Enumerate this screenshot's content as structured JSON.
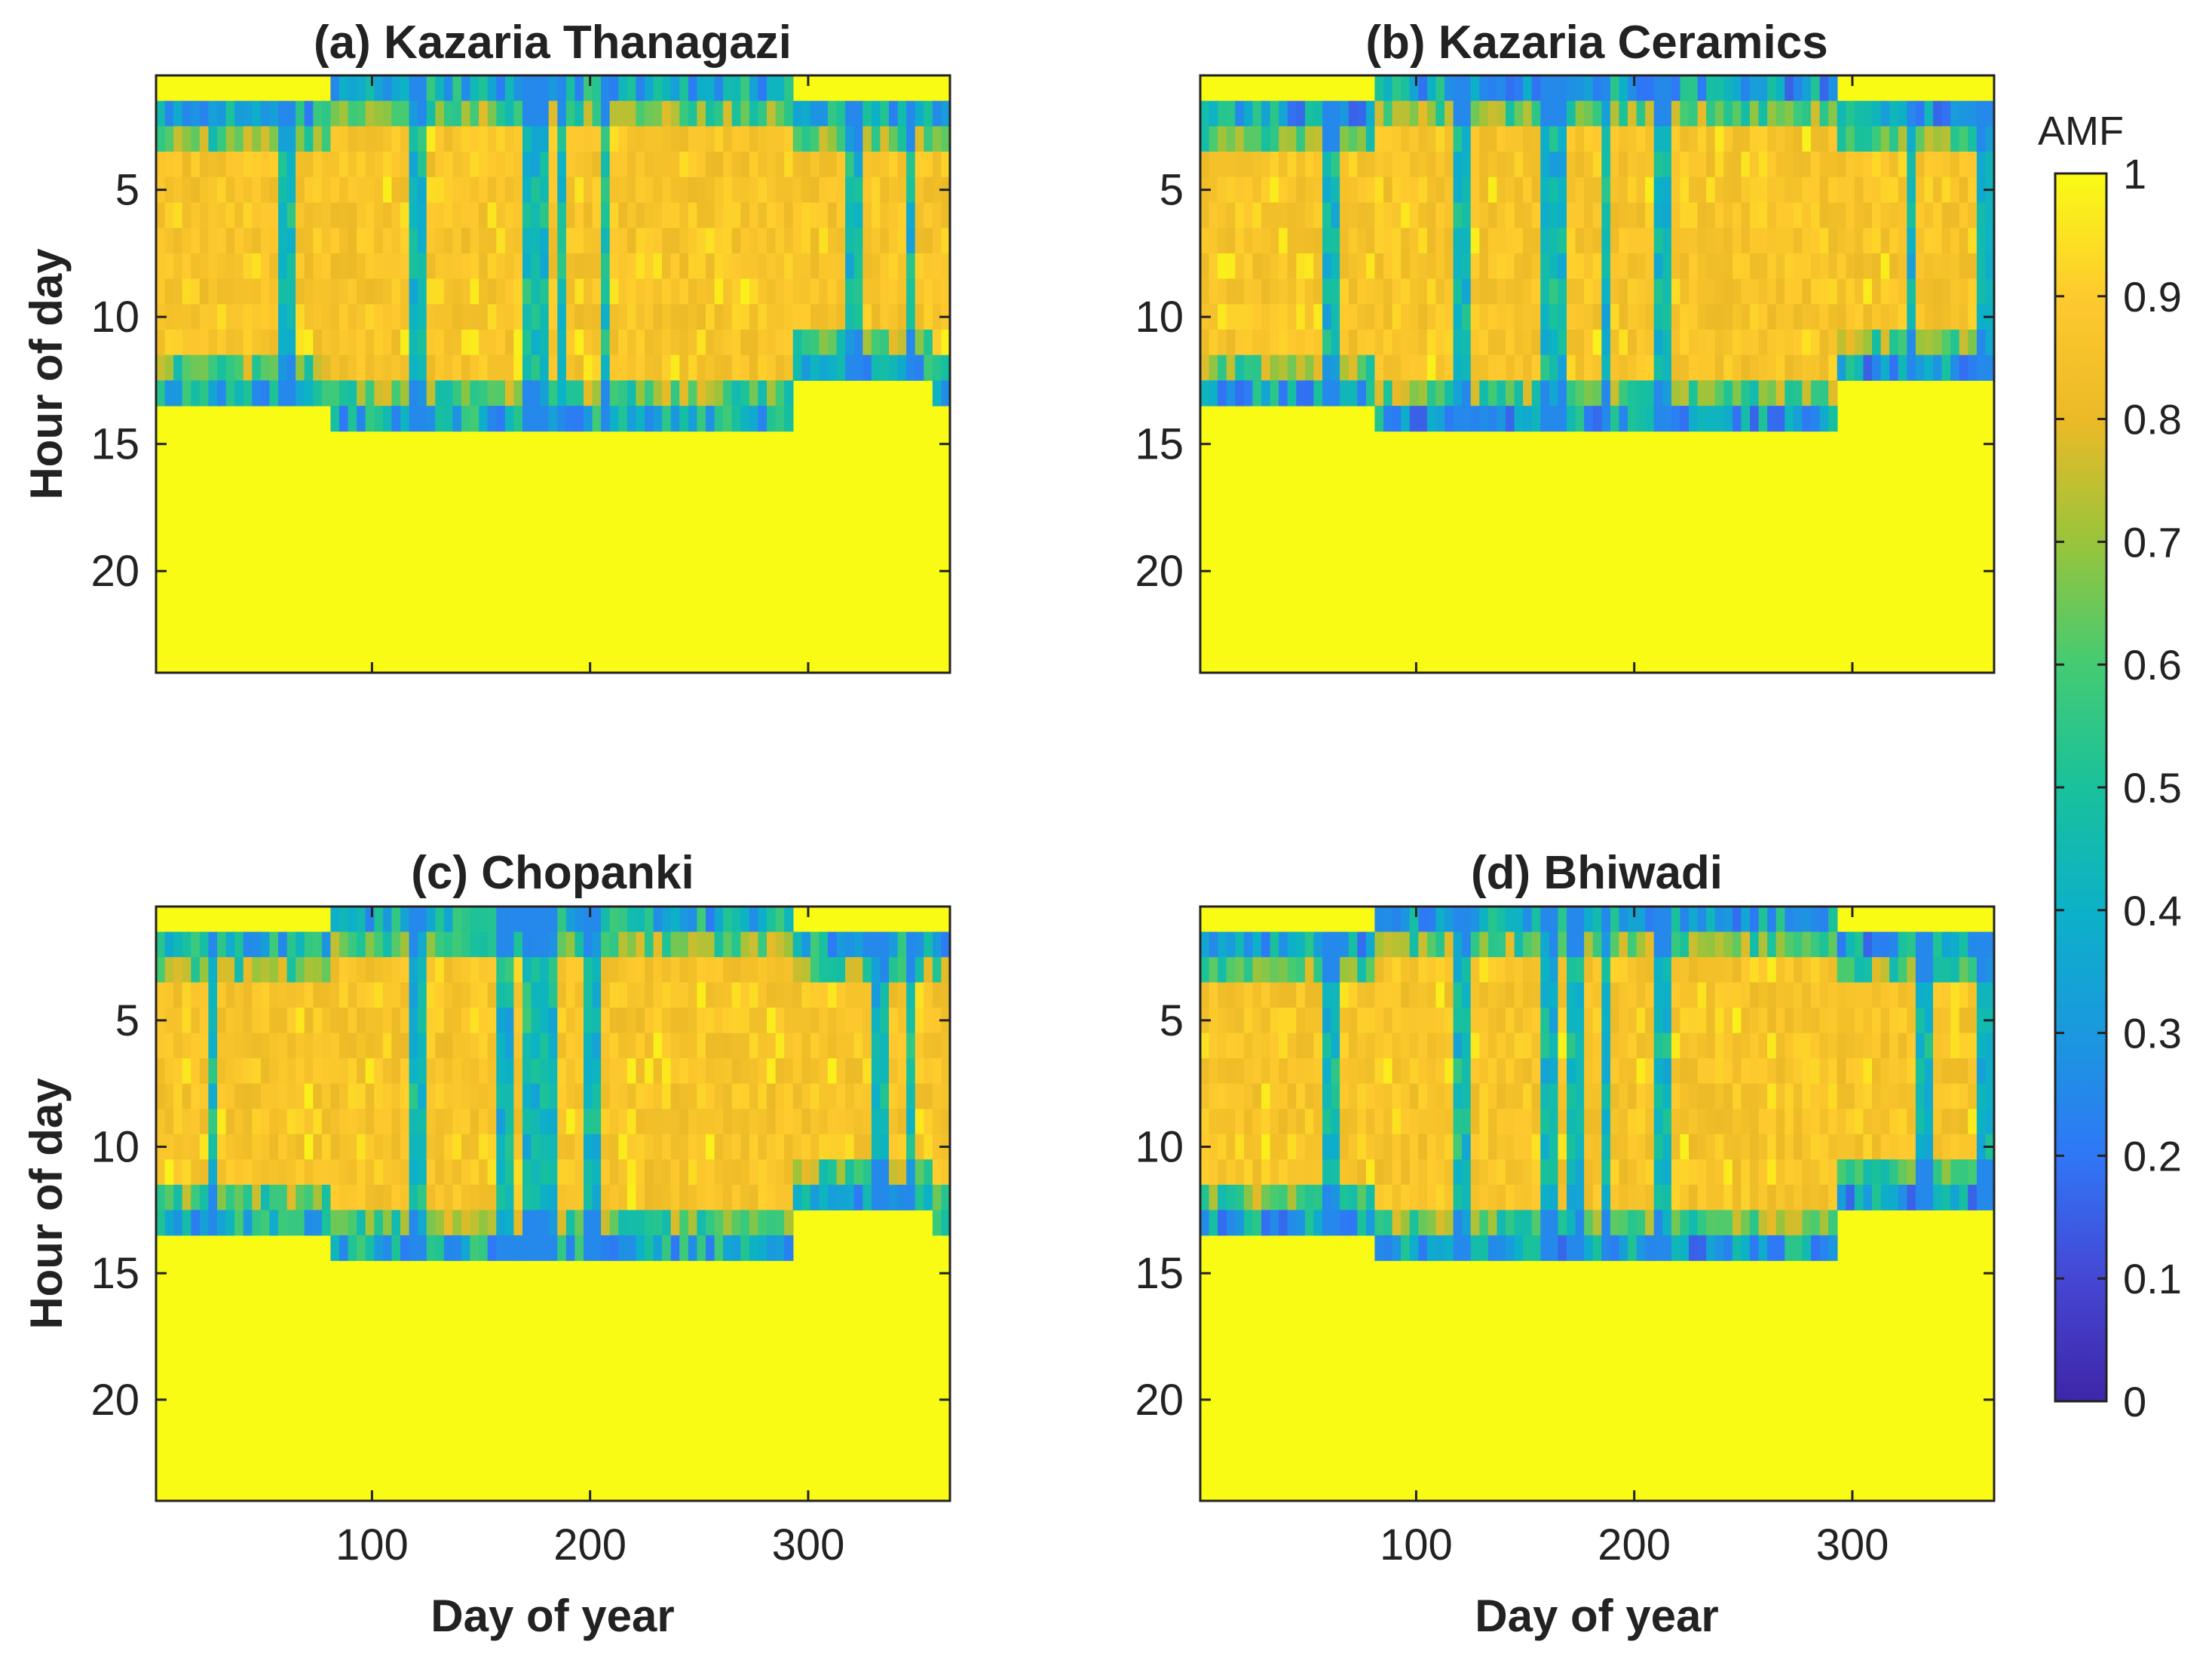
{
  "chart_data": [
    {
      "type": "heatmap",
      "title": "(a) Kazaria Thanagazi",
      "xlabel": "",
      "ylabel": "Hour of day",
      "xlim": [
        1,
        365
      ],
      "ylim": [
        24,
        0.5
      ],
      "xticks": [],
      "yticks": [
        5,
        10,
        15,
        20
      ],
      "colorscale": "parula",
      "zlim": [
        0,
        1
      ],
      "outside_mask_value": 1,
      "daylight_bounds": [
        {
          "days": [
            1,
            80
          ],
          "first_hour": 2,
          "last_hour": 13
        },
        {
          "days": [
            80,
            290
          ],
          "first_hour": 1,
          "last_hour": 14
        },
        {
          "days": [
            290,
            355
          ],
          "first_hour": 2,
          "last_hour": 12
        },
        {
          "days": [
            355,
            365
          ],
          "first_hour": 2,
          "last_hour": 13
        }
      ],
      "twilight_band_values": [
        0.2,
        0.6
      ],
      "midday_values": [
        0.8,
        0.92
      ],
      "cloudy_days": [
        60,
        120,
        170,
        175,
        185,
        205,
        320,
        345
      ]
    },
    {
      "type": "heatmap",
      "title": "(b) Kazaria Ceramics",
      "xlabel": "",
      "ylabel": "",
      "xlim": [
        1,
        365
      ],
      "ylim": [
        24,
        0.5
      ],
      "xticks": [],
      "yticks": [
        5,
        10,
        15,
        20
      ],
      "colorscale": "parula",
      "zlim": [
        0,
        1
      ],
      "outside_mask_value": 1,
      "daylight_bounds": [
        {
          "days": [
            1,
            80
          ],
          "first_hour": 2,
          "last_hour": 13
        },
        {
          "days": [
            80,
            290
          ],
          "first_hour": 1,
          "last_hour": 14
        },
        {
          "days": [
            290,
            365
          ],
          "first_hour": 2,
          "last_hour": 12
        }
      ],
      "twilight_band_values": [
        0.15,
        0.55
      ],
      "midday_values": [
        0.8,
        0.92
      ],
      "cloudy_days": [
        60,
        120,
        160,
        165,
        185,
        210,
        325,
        360
      ]
    },
    {
      "type": "heatmap",
      "title": "(c) Chopanki",
      "xlabel": "Day of year",
      "ylabel": "Hour of day",
      "xlim": [
        1,
        365
      ],
      "ylim": [
        24,
        0.5
      ],
      "xticks": [
        100,
        200,
        300
      ],
      "yticks": [
        5,
        10,
        15,
        20
      ],
      "colorscale": "parula",
      "zlim": [
        0,
        1
      ],
      "outside_mask_value": 1,
      "daylight_bounds": [
        {
          "days": [
            1,
            80
          ],
          "first_hour": 2,
          "last_hour": 13
        },
        {
          "days": [
            80,
            290
          ],
          "first_hour": 1,
          "last_hour": 14
        },
        {
          "days": [
            290,
            355
          ],
          "first_hour": 2,
          "last_hour": 12
        },
        {
          "days": [
            355,
            365
          ],
          "first_hour": 2,
          "last_hour": 13
        }
      ],
      "twilight_band_values": [
        0.2,
        0.6
      ],
      "midday_values": [
        0.8,
        0.92
      ],
      "cloudy_days": [
        25,
        120,
        160,
        170,
        180,
        200,
        330,
        345
      ]
    },
    {
      "type": "heatmap",
      "title": "(d) Bhiwadi",
      "xlabel": "Day of year",
      "ylabel": "",
      "xlim": [
        1,
        365
      ],
      "ylim": [
        24,
        0.5
      ],
      "xticks": [
        100,
        200,
        300
      ],
      "yticks": [
        5,
        10,
        15,
        20
      ],
      "colorscale": "parula",
      "zlim": [
        0,
        1
      ],
      "outside_mask_value": 1,
      "daylight_bounds": [
        {
          "days": [
            1,
            80
          ],
          "first_hour": 2,
          "last_hour": 13
        },
        {
          "days": [
            80,
            290
          ],
          "first_hour": 1,
          "last_hour": 14
        },
        {
          "days": [
            290,
            365
          ],
          "first_hour": 2,
          "last_hour": 12
        }
      ],
      "twilight_band_values": [
        0.15,
        0.55
      ],
      "midday_values": [
        0.8,
        0.92
      ],
      "cloudy_days": [
        60,
        120,
        160,
        170,
        185,
        210,
        330,
        360
      ]
    }
  ],
  "colorbar": {
    "label": "AMF",
    "range": [
      0,
      1
    ],
    "ticks": [
      "0",
      "0.1",
      "0.2",
      "0.3",
      "0.4",
      "0.5",
      "0.6",
      "0.7",
      "0.8",
      "0.9",
      "1"
    ],
    "colormap": "parula",
    "stops": [
      "#3e26a8",
      "#4547d4",
      "#2f77f7",
      "#1a99de",
      "#0cb1c7",
      "#19c19b",
      "#44cb73",
      "#99c43b",
      "#ecba27",
      "#feca2e",
      "#f9fb15"
    ]
  }
}
